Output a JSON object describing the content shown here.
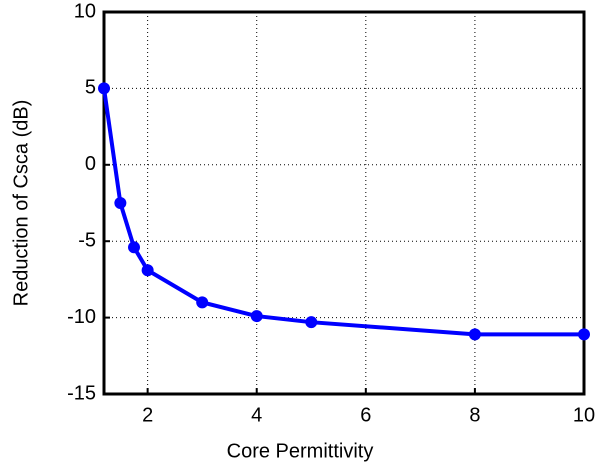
{
  "chart_data": {
    "type": "line",
    "xlabel": "Core Permittivity",
    "ylabel": "Reduction of Csca (dB)",
    "x": [
      1.2,
      1.5,
      1.75,
      2,
      3,
      4,
      5,
      8,
      10
    ],
    "series": [
      {
        "color": "#0000ff",
        "values": [
          5,
          -2.5,
          -5.4,
          -6.9,
          -9.0,
          -9.9,
          -10.3,
          -11.1,
          -11.1
        ]
      }
    ],
    "xlim": [
      1.2,
      10
    ],
    "xticks": [
      2,
      4,
      6,
      8,
      10
    ],
    "ylim": [
      -15,
      10
    ],
    "yticks": [
      -15,
      -10,
      -5,
      0,
      5,
      10
    ],
    "grid": true
  }
}
